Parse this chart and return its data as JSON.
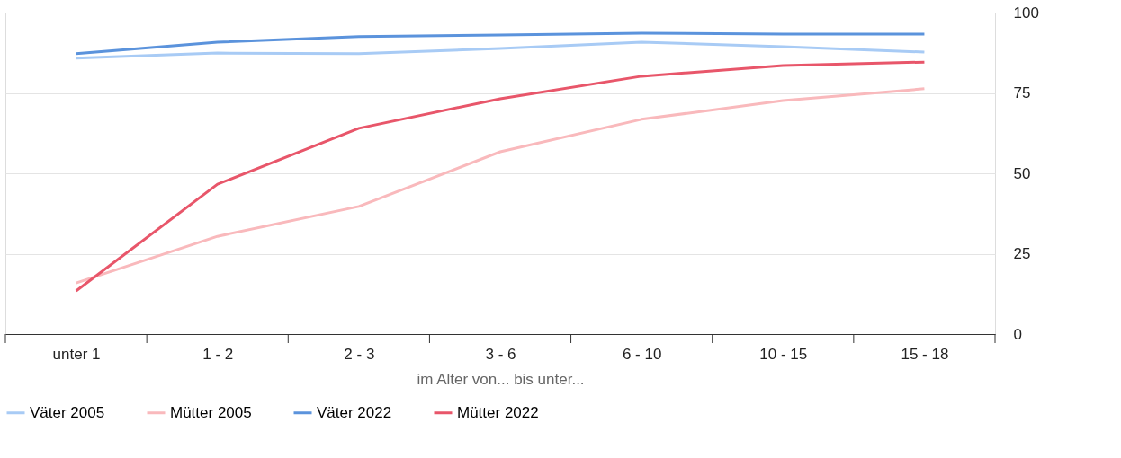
{
  "chart_data": {
    "type": "line",
    "xlabel": "im Alter von... bis unter...",
    "categories": [
      "unter 1",
      "1 - 2",
      "2 - 3",
      "3 - 6",
      "6 - 10",
      "10 - 15",
      "15 - 18"
    ],
    "series": [
      {
        "name": "Väter 2005",
        "color": "#a8cbf5",
        "values": [
          85.8,
          87.4,
          87.2,
          88.8,
          90.8,
          89.4,
          87.7
        ]
      },
      {
        "name": "Mütter 2005",
        "color": "#f9b9bc",
        "values": [
          15.9,
          30.4,
          39.7,
          56.7,
          66.8,
          72.6,
          76.3
        ]
      },
      {
        "name": "Väter 2022",
        "color": "#5b93dc",
        "values": [
          87.2,
          90.8,
          92.5,
          93,
          93.6,
          93.3,
          93.3
        ]
      },
      {
        "name": "Mütter 2022",
        "color": "#e8566a",
        "values": [
          13.4,
          46.6,
          64,
          73.2,
          80.2,
          83.5,
          84.6
        ]
      }
    ],
    "ylim": [
      0,
      100
    ],
    "yticks": [
      0,
      25,
      50,
      75,
      100
    ],
    "grid": "y",
    "legend": "bottom",
    "marker": "none",
    "line_style": "solid"
  }
}
